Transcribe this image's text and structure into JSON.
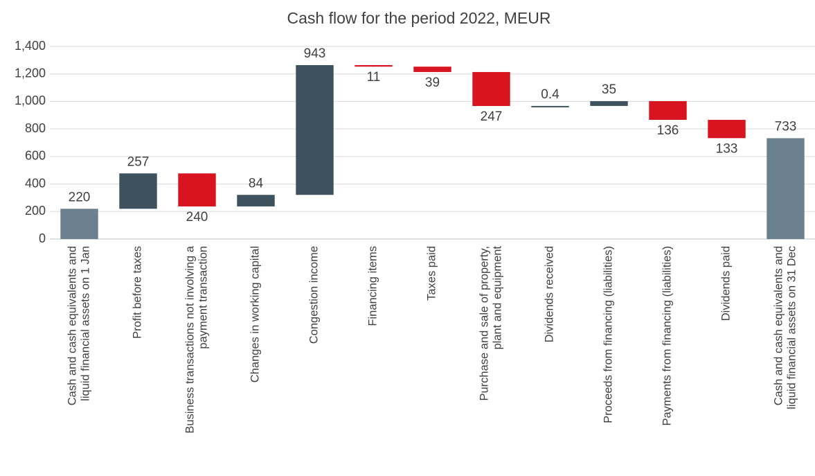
{
  "chart_data": {
    "type": "waterfall",
    "title": "Cash flow for the period 2022, MEUR",
    "categories": [
      "Cash and cash equivalents and\nliquid financial assets on 1 Jan",
      "Profit before taxes",
      "Business transactions not involving a\npayment transaction",
      "Changes in working capital",
      "Congestion income",
      "Financing items",
      "Taxes paid",
      "Purchase and sale of property,\nplant and equipment",
      "Dividends received",
      "Proceeds from financing (liabilities)",
      "Payments from financing (liabilities)",
      "Dividends paid",
      "Cash and cash equivalents and\nliquid financial assets on 31 Dec"
    ],
    "values": [
      220,
      257,
      -240,
      84,
      943,
      -11,
      -39,
      -247,
      0.4,
      35,
      -136,
      -133,
      733
    ],
    "value_labels": [
      "220",
      "257",
      "240",
      "84",
      "943",
      "11",
      "39",
      "247",
      "0.4",
      "35",
      "136",
      "133",
      "733"
    ],
    "measure": [
      "total",
      "relative",
      "relative",
      "relative",
      "relative",
      "relative",
      "relative",
      "relative",
      "relative",
      "relative",
      "relative",
      "relative",
      "total"
    ],
    "colors": {
      "increase": "#3d525c",
      "decrease": "#d7141f",
      "total": "#6c8190"
    },
    "ylim": [
      0,
      1400
    ],
    "yticks": [
      0,
      200,
      400,
      600,
      800,
      {
        "value": 1000,
        "label": "1,000"
      },
      {
        "value": 1200,
        "label": "1,200"
      },
      {
        "value": 1400,
        "label": "1,400"
      }
    ],
    "grid": true
  }
}
